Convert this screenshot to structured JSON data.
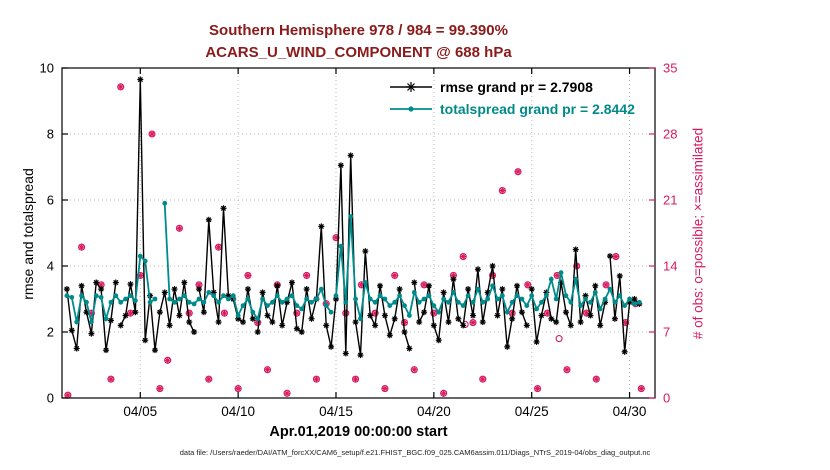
{
  "colors": {
    "title": "#8b1a1a",
    "rmse": "#000000",
    "totalspread": "#008b8b",
    "obs": "#d81b60",
    "grid": "#b8b8b8",
    "axis": "#000000",
    "background": "#ffffff"
  },
  "chart_data": {
    "type": "line",
    "title_line1": "Southern Hemisphere 978 / 984 = 99.390%",
    "title_line2": "ACARS_U_WIND_COMPONENT @ 688 hPa",
    "xlabel": "Apr.01,2019 00:00:00 start",
    "ylabel_left": "rmse and totalspread",
    "ylabel_right": "# of obs: o=possible; ×=assimilated",
    "footer": "data file: /Users/raeder/DAI/ATM_forcXX/CAM6_setup/f.e21.FHIST_BGC.f09_025.CAM6assim.011/Diags_NTrS_2019-04/obs_diag_output.nc",
    "xlim": [
      0,
      30.3
    ],
    "ylim_left": [
      0,
      10
    ],
    "ylim_right": [
      0,
      35
    ],
    "yticks_left": [
      0,
      2,
      4,
      6,
      8,
      10
    ],
    "yticks_right": [
      0,
      7,
      14,
      21,
      28,
      35
    ],
    "xtick_positions": [
      4,
      9,
      14,
      19,
      24,
      29
    ],
    "xtick_labels": [
      "04/05",
      "04/10",
      "04/15",
      "04/20",
      "04/25",
      "04/30"
    ],
    "grid": true,
    "legend_position": "top-right-inside",
    "series": [
      {
        "name": "rmse",
        "legend": "rmse grand pr = 2.7908",
        "grand_value": 2.7908,
        "color": "#000000",
        "marker": "asterisk",
        "axis": "left",
        "points": [
          [
            0.25,
            3.3
          ],
          [
            0.5,
            2.05
          ],
          [
            0.75,
            1.5
          ],
          [
            1.0,
            3.4
          ],
          [
            1.25,
            2.6
          ],
          [
            1.5,
            1.95
          ],
          [
            1.75,
            3.5
          ],
          [
            2.0,
            3.3
          ],
          [
            2.25,
            1.45
          ],
          [
            2.5,
            2.35
          ],
          [
            2.75,
            3.5
          ],
          [
            2.875,
            null
          ],
          [
            3.0,
            2.2
          ],
          [
            3.25,
            2.5
          ],
          [
            3.5,
            3.45
          ],
          [
            3.75,
            2.6
          ],
          [
            4.0,
            9.65
          ],
          [
            4.25,
            1.75
          ],
          [
            4.5,
            3.1
          ],
          [
            4.75,
            1.45
          ],
          [
            5.0,
            2.6
          ],
          [
            5.25,
            3.2
          ],
          [
            5.5,
            2.2
          ],
          [
            5.75,
            3.3
          ],
          [
            6.0,
            2.5
          ],
          [
            6.25,
            3.5
          ],
          [
            6.5,
            2.3
          ],
          [
            6.75,
            2.0
          ],
          [
            6.875,
            null
          ],
          [
            7.0,
            3.3
          ],
          [
            7.25,
            2.6
          ],
          [
            7.5,
            5.4
          ],
          [
            7.75,
            3.2
          ],
          [
            8.0,
            2.3
          ],
          [
            8.25,
            5.75
          ],
          [
            8.5,
            3.1
          ],
          [
            8.75,
            3.0
          ],
          [
            9.0,
            2.4
          ],
          [
            9.25,
            2.3
          ],
          [
            9.5,
            3.3
          ],
          [
            9.75,
            2.4
          ],
          [
            9.875,
            null
          ],
          [
            10.0,
            2.0
          ],
          [
            10.25,
            3.2
          ],
          [
            10.5,
            2.5
          ],
          [
            10.75,
            2.3
          ],
          [
            11.0,
            3.4
          ],
          [
            11.25,
            2.2
          ],
          [
            11.5,
            2.9
          ],
          [
            11.75,
            3.5
          ],
          [
            12.0,
            2.1
          ],
          [
            12.25,
            2.0
          ],
          [
            12.5,
            3.3
          ],
          [
            12.75,
            2.4
          ],
          [
            13.0,
            3.0
          ],
          [
            13.25,
            5.2
          ],
          [
            13.5,
            2.2
          ],
          [
            13.75,
            1.55
          ],
          [
            14.0,
            3.0
          ],
          [
            14.25,
            7.05
          ],
          [
            14.5,
            1.35
          ],
          [
            14.75,
            7.35
          ],
          [
            15.0,
            2.3
          ],
          [
            15.25,
            1.3
          ],
          [
            15.5,
            4.45
          ],
          [
            15.75,
            2.5
          ],
          [
            16.0,
            2.2
          ],
          [
            16.25,
            3.4
          ],
          [
            16.5,
            2.5
          ],
          [
            16.75,
            1.9
          ],
          [
            17.0,
            2.4
          ],
          [
            17.25,
            3.3
          ],
          [
            17.5,
            2.0
          ],
          [
            17.75,
            1.5
          ],
          [
            17.875,
            null
          ],
          [
            18.0,
            3.5
          ],
          [
            18.25,
            2.3
          ],
          [
            18.5,
            2.6
          ],
          [
            18.75,
            3.4
          ],
          [
            19.0,
            2.2
          ],
          [
            19.25,
            1.75
          ],
          [
            19.5,
            3.2
          ],
          [
            19.75,
            2.3
          ],
          [
            20.0,
            3.6
          ],
          [
            20.25,
            2.4
          ],
          [
            20.5,
            2.2
          ],
          [
            20.75,
            3.3
          ],
          [
            21.0,
            2.5
          ],
          [
            21.25,
            3.9
          ],
          [
            21.5,
            2.3
          ],
          [
            21.75,
            3.2
          ],
          [
            22.0,
            4.0
          ],
          [
            22.25,
            2.5
          ],
          [
            22.5,
            3.3
          ],
          [
            22.75,
            1.55
          ],
          [
            23.0,
            2.4
          ],
          [
            23.25,
            3.4
          ],
          [
            23.5,
            2.6
          ],
          [
            23.75,
            2.2
          ],
          [
            23.875,
            null
          ],
          [
            24.0,
            3.3
          ],
          [
            24.25,
            1.7
          ],
          [
            24.5,
            2.5
          ],
          [
            24.75,
            3.2
          ],
          [
            25.0,
            2.4
          ],
          [
            25.25,
            2.3
          ],
          [
            25.5,
            3.5
          ],
          [
            25.75,
            2.6
          ],
          [
            26.0,
            2.2
          ],
          [
            26.25,
            4.5
          ],
          [
            26.5,
            2.3
          ],
          [
            26.75,
            3.1
          ],
          [
            27.0,
            2.5
          ],
          [
            27.25,
            3.4
          ],
          [
            27.5,
            2.2
          ],
          [
            27.75,
            2.9
          ],
          [
            27.875,
            null
          ],
          [
            28.0,
            4.3
          ],
          [
            28.25,
            2.4
          ],
          [
            28.5,
            3.7
          ],
          [
            28.75,
            1.4
          ],
          [
            29.0,
            2.9
          ],
          [
            29.25,
            3.0
          ],
          [
            29.5,
            2.85
          ]
        ]
      },
      {
        "name": "totalspread",
        "legend": "totalspread grand pr = 2.8442",
        "grand_value": 2.8442,
        "color": "#008b8b",
        "marker": "dot",
        "axis": "left",
        "points": [
          [
            0.25,
            3.1
          ],
          [
            0.5,
            3.05
          ],
          [
            0.75,
            2.3
          ],
          [
            1.0,
            3.1
          ],
          [
            1.25,
            2.9
          ],
          [
            1.5,
            2.3
          ],
          [
            1.75,
            3.1
          ],
          [
            2.0,
            3.05
          ],
          [
            2.25,
            2.4
          ],
          [
            2.5,
            2.9
          ],
          [
            2.75,
            3.1
          ],
          [
            3.0,
            2.9
          ],
          [
            3.25,
            3.0
          ],
          [
            3.5,
            3.1
          ],
          [
            3.75,
            2.95
          ],
          [
            4.0,
            4.3
          ],
          [
            4.25,
            4.15
          ],
          [
            4.5,
            2.9
          ],
          [
            4.75,
            3.0
          ],
          [
            5.0,
            null
          ],
          [
            5.25,
            5.9
          ],
          [
            5.5,
            3.0
          ],
          [
            5.75,
            2.9
          ],
          [
            6.0,
            3.0
          ],
          [
            6.25,
            3.1
          ],
          [
            6.5,
            2.9
          ],
          [
            6.75,
            2.85
          ],
          [
            7.0,
            3.0
          ],
          [
            7.25,
            2.9
          ],
          [
            7.5,
            3.2
          ],
          [
            7.75,
            3.1
          ],
          [
            8.0,
            2.9
          ],
          [
            8.25,
            3.1
          ],
          [
            8.5,
            3.0
          ],
          [
            8.75,
            3.1
          ],
          [
            9.0,
            2.5
          ],
          [
            9.25,
            2.8
          ],
          [
            9.5,
            3.0
          ],
          [
            9.75,
            2.6
          ],
          [
            10.0,
            2.4
          ],
          [
            10.25,
            3.0
          ],
          [
            10.5,
            2.8
          ],
          [
            10.75,
            2.9
          ],
          [
            11.0,
            3.1
          ],
          [
            11.25,
            2.9
          ],
          [
            11.5,
            3.0
          ],
          [
            11.75,
            3.1
          ],
          [
            12.0,
            2.8
          ],
          [
            12.25,
            2.7
          ],
          [
            12.5,
            3.0
          ],
          [
            12.75,
            2.9
          ],
          [
            13.0,
            3.0
          ],
          [
            13.25,
            3.3
          ],
          [
            13.5,
            2.8
          ],
          [
            13.75,
            2.6
          ],
          [
            13.875,
            null
          ],
          [
            14.0,
            3.1
          ],
          [
            14.25,
            4.6
          ],
          [
            14.5,
            2.9
          ],
          [
            14.75,
            5.5
          ],
          [
            15.0,
            3.0
          ],
          [
            15.25,
            2.4
          ],
          [
            15.5,
            3.5
          ],
          [
            15.75,
            3.0
          ],
          [
            16.0,
            2.9
          ],
          [
            16.25,
            3.1
          ],
          [
            16.5,
            3.0
          ],
          [
            16.75,
            2.8
          ],
          [
            17.0,
            2.9
          ],
          [
            17.25,
            3.1
          ],
          [
            17.5,
            2.8
          ],
          [
            17.75,
            2.5
          ],
          [
            18.0,
            3.2
          ],
          [
            18.25,
            2.9
          ],
          [
            18.5,
            3.0
          ],
          [
            18.75,
            3.1
          ],
          [
            19.0,
            2.8
          ],
          [
            19.25,
            2.6
          ],
          [
            19.5,
            3.0
          ],
          [
            19.75,
            2.9
          ],
          [
            20.0,
            3.2
          ],
          [
            20.25,
            2.9
          ],
          [
            20.5,
            2.8
          ],
          [
            20.75,
            3.1
          ],
          [
            20.875,
            null
          ],
          [
            21.0,
            2.9
          ],
          [
            21.25,
            3.3
          ],
          [
            21.5,
            2.9
          ],
          [
            21.75,
            3.0
          ],
          [
            22.0,
            3.4
          ],
          [
            22.25,
            3.0
          ],
          [
            22.5,
            3.1
          ],
          [
            22.75,
            2.6
          ],
          [
            23.0,
            2.9
          ],
          [
            23.25,
            3.1
          ],
          [
            23.5,
            3.0
          ],
          [
            23.75,
            2.8
          ],
          [
            24.0,
            3.1
          ],
          [
            24.25,
            2.7
          ],
          [
            24.5,
            2.9
          ],
          [
            24.75,
            3.1
          ],
          [
            25.0,
            3.6
          ],
          [
            25.25,
            3.0
          ],
          [
            25.5,
            3.8
          ],
          [
            25.75,
            3.1
          ],
          [
            26.0,
            2.9
          ],
          [
            26.25,
            3.6
          ],
          [
            26.5,
            2.8
          ],
          [
            26.75,
            3.0
          ],
          [
            26.875,
            null
          ],
          [
            27.0,
            2.9
          ],
          [
            27.25,
            3.2
          ],
          [
            27.5,
            2.7
          ],
          [
            27.75,
            3.0
          ],
          [
            28.0,
            3.3
          ],
          [
            28.25,
            2.9
          ],
          [
            28.5,
            3.1
          ],
          [
            28.75,
            2.8
          ],
          [
            29.0,
            3.0
          ],
          [
            29.25,
            2.85
          ],
          [
            29.5,
            2.9
          ]
        ]
      }
    ],
    "obs_counts": {
      "name": "# of obs (possible and assimilated)",
      "color": "#d81b60",
      "axis": "right",
      "points": [
        [
          0.3,
          0.3
        ],
        [
          1.0,
          16
        ],
        [
          1.5,
          9
        ],
        [
          2.0,
          12
        ],
        [
          2.5,
          2
        ],
        [
          3.0,
          33
        ],
        [
          3.5,
          9
        ],
        [
          4.0,
          13
        ],
        [
          4.6,
          28
        ],
        [
          5.0,
          1
        ],
        [
          5.4,
          4
        ],
        [
          6.0,
          18
        ],
        [
          6.5,
          9
        ],
        [
          7.0,
          12
        ],
        [
          7.5,
          2
        ],
        [
          8.0,
          16
        ],
        [
          8.3,
          9
        ],
        [
          9.0,
          1
        ],
        [
          9.5,
          13
        ],
        [
          10.0,
          8
        ],
        [
          10.5,
          3
        ],
        [
          11.0,
          12
        ],
        [
          11.5,
          0.5
        ],
        [
          12.0,
          9
        ],
        [
          12.5,
          13
        ],
        [
          13.0,
          2
        ],
        [
          13.5,
          10
        ],
        [
          14.0,
          17
        ],
        [
          14.5,
          9
        ],
        [
          15.0,
          2
        ],
        [
          15.3,
          12
        ],
        [
          16.0,
          9
        ],
        [
          16.5,
          1
        ],
        [
          17.0,
          13
        ],
        [
          17.5,
          8
        ],
        [
          18.0,
          3
        ],
        [
          18.5,
          12
        ],
        [
          19.0,
          9
        ],
        [
          19.5,
          0.5
        ],
        [
          20.0,
          13
        ],
        [
          20.5,
          15
        ],
        [
          21.0,
          8
        ],
        [
          21.5,
          2
        ],
        [
          22.0,
          13
        ],
        [
          22.5,
          22
        ],
        [
          23.0,
          9
        ],
        [
          23.3,
          24
        ],
        [
          23.8,
          12
        ],
        [
          24.3,
          1
        ],
        [
          24.8,
          9
        ],
        [
          25.3,
          13
        ],
        [
          25.8,
          3
        ],
        [
          26.3,
          14
        ],
        [
          26.8,
          9
        ],
        [
          27.3,
          2
        ],
        [
          27.8,
          12
        ],
        [
          28.3,
          15
        ],
        [
          28.8,
          8
        ],
        [
          29.3,
          10
        ],
        [
          29.6,
          1
        ]
      ],
      "possible_only_points": [
        [
          20.6,
          7.8
        ],
        [
          25.4,
          6.3
        ]
      ]
    }
  }
}
